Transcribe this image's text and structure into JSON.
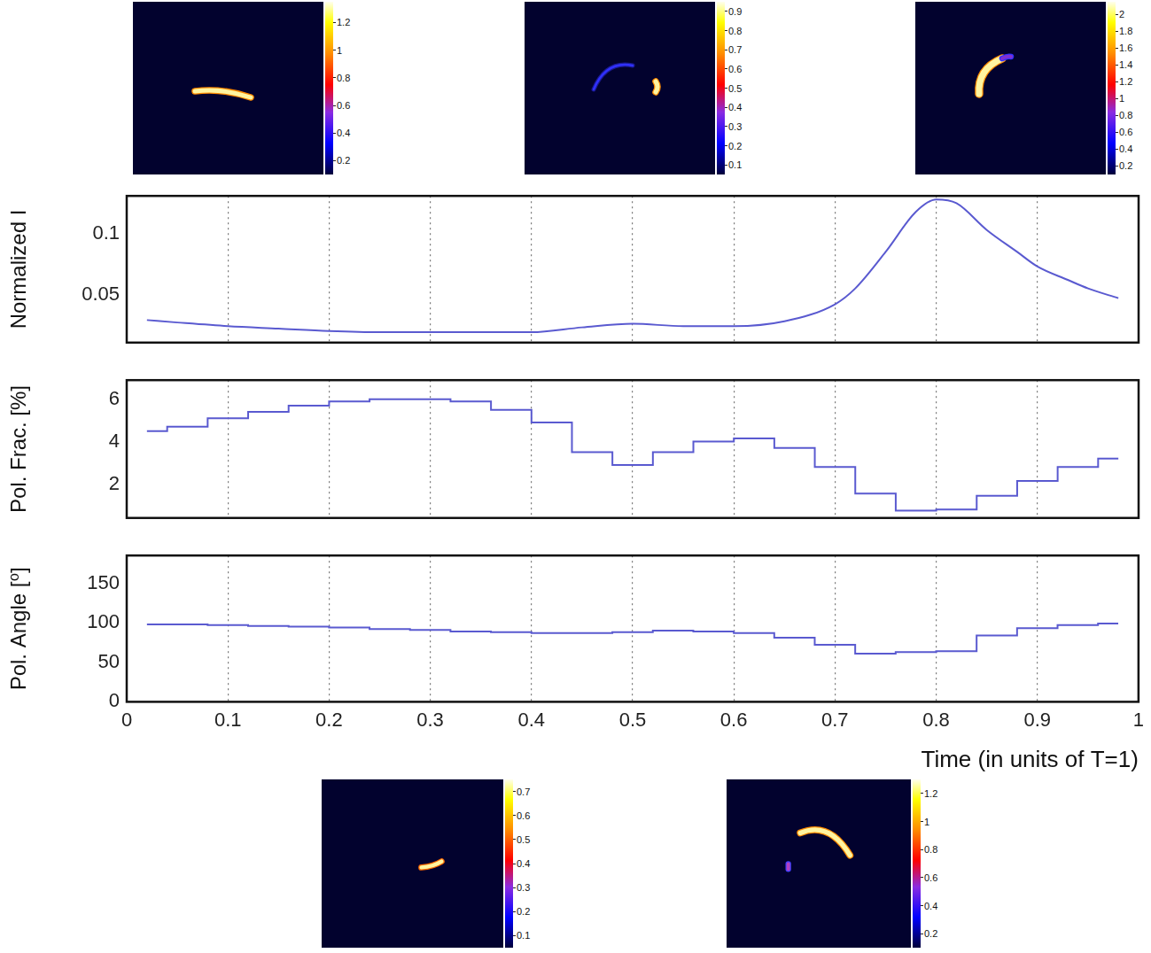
{
  "chart_data": [
    {
      "type": "line",
      "line_style": "solid",
      "ylabel": "Normalized I",
      "color": "#5a5ad0",
      "x": [
        0.02,
        0.05,
        0.1,
        0.15,
        0.2,
        0.25,
        0.3,
        0.35,
        0.4,
        0.45,
        0.5,
        0.55,
        0.6,
        0.65,
        0.7,
        0.72,
        0.75,
        0.78,
        0.8,
        0.82,
        0.85,
        0.88,
        0.9,
        0.93,
        0.95,
        0.98
      ],
      "values": [
        0.029,
        0.027,
        0.024,
        0.022,
        0.02,
        0.019,
        0.019,
        0.019,
        0.019,
        0.023,
        0.026,
        0.024,
        0.024,
        0.028,
        0.042,
        0.055,
        0.085,
        0.118,
        0.128,
        0.125,
        0.103,
        0.085,
        0.073,
        0.062,
        0.055,
        0.047
      ],
      "xlim": [
        0,
        1
      ],
      "xticks": [
        0,
        0.1,
        0.2,
        0.3,
        0.4,
        0.5,
        0.6,
        0.7,
        0.8,
        0.9,
        1
      ],
      "ylim": [
        0.0105,
        0.131
      ],
      "yticks": [
        0.05,
        0.1
      ],
      "grid": "x",
      "tick_labels": "y"
    },
    {
      "type": "line",
      "line_style": "step",
      "ylabel": "Pol. Frac. [%]",
      "color": "#5a5ad0",
      "x": [
        0.02,
        0.04,
        0.08,
        0.12,
        0.16,
        0.2,
        0.24,
        0.28,
        0.32,
        0.36,
        0.4,
        0.44,
        0.48,
        0.52,
        0.56,
        0.6,
        0.64,
        0.68,
        0.72,
        0.76,
        0.8,
        0.84,
        0.88,
        0.92,
        0.96,
        0.98
      ],
      "values": [
        4.5,
        4.7,
        5.1,
        5.4,
        5.7,
        5.9,
        6.0,
        6.0,
        5.9,
        5.5,
        4.9,
        3.5,
        2.9,
        3.5,
        4.0,
        4.15,
        3.7,
        2.8,
        1.55,
        0.75,
        0.8,
        1.45,
        2.15,
        2.8,
        3.2,
        3.2
      ],
      "xlim": [
        0,
        1
      ],
      "xticks": [
        0,
        0.1,
        0.2,
        0.3,
        0.4,
        0.5,
        0.6,
        0.7,
        0.8,
        0.9,
        1
      ],
      "ylim": [
        0.4,
        6.9
      ],
      "yticks": [
        2,
        4,
        6
      ],
      "grid": "x",
      "tick_labels": "y"
    },
    {
      "type": "line",
      "line_style": "step",
      "ylabel": "Pol. Angle [⁰]",
      "xlabel": "Time (in units of T=1)",
      "color": "#5a5ad0",
      "x": [
        0.02,
        0.04,
        0.08,
        0.12,
        0.16,
        0.2,
        0.24,
        0.28,
        0.32,
        0.36,
        0.4,
        0.44,
        0.48,
        0.52,
        0.56,
        0.6,
        0.64,
        0.68,
        0.72,
        0.76,
        0.8,
        0.84,
        0.88,
        0.92,
        0.96,
        0.98
      ],
      "values": [
        98,
        98,
        97,
        96,
        95,
        94,
        92,
        91,
        89,
        88,
        87,
        87,
        88,
        90,
        89,
        87,
        81,
        72,
        61,
        63,
        64,
        84,
        93,
        97,
        99,
        99
      ],
      "xlim": [
        0,
        1
      ],
      "xticks": [
        0,
        0.1,
        0.2,
        0.3,
        0.4,
        0.5,
        0.6,
        0.7,
        0.8,
        0.9,
        1
      ],
      "ylim": [
        0,
        185
      ],
      "yticks": [
        0,
        50,
        100,
        150
      ],
      "grid": "x",
      "tick_labels": true
    }
  ],
  "images": [
    {
      "colorbar_range": [
        0.1,
        1.35
      ],
      "colorbar_ticks": [
        0.2,
        0.4,
        0.6,
        0.8,
        1,
        1.2
      ]
    },
    {
      "colorbar_range": [
        0.05,
        0.95
      ],
      "colorbar_ticks": [
        0.1,
        0.2,
        0.3,
        0.4,
        0.5,
        0.6,
        0.7,
        0.8,
        0.9
      ]
    },
    {
      "colorbar_range": [
        0.1,
        2.15
      ],
      "colorbar_ticks": [
        0.2,
        0.4,
        0.6,
        0.8,
        1,
        1.2,
        1.4,
        1.6,
        1.8,
        2
      ]
    },
    {
      "colorbar_range": [
        0.05,
        0.75
      ],
      "colorbar_ticks": [
        0.1,
        0.2,
        0.3,
        0.4,
        0.5,
        0.6,
        0.7
      ]
    },
    {
      "colorbar_range": [
        0.1,
        1.3
      ],
      "colorbar_ticks": [
        0.2,
        0.4,
        0.6,
        0.8,
        1,
        1.2
      ]
    }
  ]
}
